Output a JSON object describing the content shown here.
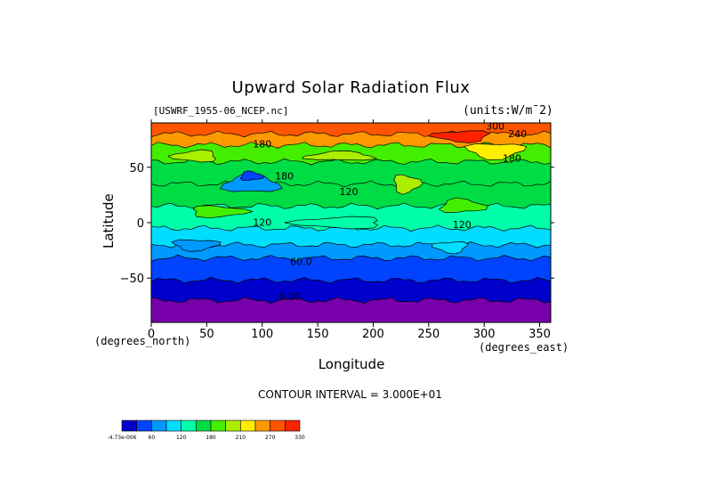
{
  "chart_data": {
    "type": "heatmap",
    "title": "Upward Solar Radiation Flux",
    "dataset_label": "[USWRF_1955-06_NCEP.nc]",
    "units_label": "(units:W/m^2)",
    "xlabel": "Longitude",
    "x_units": "(degrees_east)",
    "ylabel": "Latitude",
    "y_units": "(degrees_north)",
    "xlim": [
      0,
      360
    ],
    "ylim": [
      -90,
      90
    ],
    "x_ticks": [
      0,
      50,
      100,
      150,
      200,
      250,
      300,
      350
    ],
    "y_ticks": [
      -50,
      0,
      50
    ],
    "contour_interval_text": "CONTOUR INTERVAL = 3.000E+01",
    "contour_labels": [
      {
        "text": "300",
        "lon": 310,
        "lat": 84
      },
      {
        "text": "240",
        "lon": 330,
        "lat": 77
      },
      {
        "text": "180",
        "lon": 100,
        "lat": 68
      },
      {
        "text": "180",
        "lon": 325,
        "lat": 55
      },
      {
        "text": "180",
        "lon": 120,
        "lat": 39
      },
      {
        "text": "120",
        "lon": 178,
        "lat": 25
      },
      {
        "text": "120",
        "lon": 100,
        "lat": -3
      },
      {
        "text": "120",
        "lon": 280,
        "lat": -5
      },
      {
        "text": "60.0",
        "lon": 135,
        "lat": -38
      },
      {
        "text": "0.00",
        "lon": 125,
        "lat": -70
      }
    ],
    "colorbar": {
      "min_label": "-4.73e-006",
      "tick_labels": [
        "-4.73e-006",
        "60",
        "120",
        "180",
        "210",
        "270",
        "330"
      ],
      "colors": [
        "#0000cc",
        "#0044ff",
        "#0099ff",
        "#00ddff",
        "#00ffaa",
        "#00dd44",
        "#44ee00",
        "#aaee00",
        "#ffee00",
        "#ff9900",
        "#ff5500",
        "#ff2200"
      ]
    },
    "latitude_bands": [
      {
        "lat_top": 90,
        "lat_bottom": 80,
        "value": 280,
        "color": "#ff5500"
      },
      {
        "lat_top": 80,
        "lat_bottom": 70,
        "value": 240,
        "color": "#ff9900"
      },
      {
        "lat_top": 70,
        "lat_bottom": 55,
        "value": 200,
        "color": "#44ee00"
      },
      {
        "lat_top": 55,
        "lat_bottom": 35,
        "value": 180,
        "color": "#00dd44"
      },
      {
        "lat_top": 35,
        "lat_bottom": 15,
        "value": 150,
        "color": "#00dd44"
      },
      {
        "lat_top": 15,
        "lat_bottom": -5,
        "value": 130,
        "color": "#00ffaa"
      },
      {
        "lat_top": -5,
        "lat_bottom": -20,
        "value": 100,
        "color": "#00ddff"
      },
      {
        "lat_top": -20,
        "lat_bottom": -32,
        "value": 75,
        "color": "#0099ff"
      },
      {
        "lat_top": -32,
        "lat_bottom": -52,
        "value": 45,
        "color": "#0044ff"
      },
      {
        "lat_top": -52,
        "lat_bottom": -70,
        "value": 15,
        "color": "#0000cc"
      },
      {
        "lat_top": -70,
        "lat_bottom": -90,
        "value": 0,
        "color": "#7700aa"
      }
    ],
    "patches": [
      {
        "lon": 90,
        "lat": 35,
        "rlon": 25,
        "rlat": 8,
        "color": "#0099ff"
      },
      {
        "lon": 90,
        "lat": 42,
        "rlon": 10,
        "rlat": 4,
        "color": "#0044ff"
      },
      {
        "lon": 230,
        "lat": 35,
        "rlon": 12,
        "rlat": 8,
        "color": "#aaee00"
      },
      {
        "lon": 310,
        "lat": 65,
        "rlon": 25,
        "rlat": 7,
        "color": "#ffee00"
      },
      {
        "lon": 280,
        "lat": 78,
        "rlon": 25,
        "rlat": 5,
        "color": "#ff2200"
      },
      {
        "lon": 40,
        "lat": 60,
        "rlon": 20,
        "rlat": 5,
        "color": "#aaee00"
      },
      {
        "lon": 170,
        "lat": 60,
        "rlon": 30,
        "rlat": 4,
        "color": "#aaee00"
      },
      {
        "lon": 280,
        "lat": 15,
        "rlon": 20,
        "rlat": 6,
        "color": "#44ee00"
      },
      {
        "lon": 60,
        "lat": 10,
        "rlon": 25,
        "rlat": 5,
        "color": "#44ee00"
      },
      {
        "lon": 40,
        "lat": -20,
        "rlon": 20,
        "rlat": 5,
        "color": "#0099ff"
      },
      {
        "lon": 270,
        "lat": -22,
        "rlon": 15,
        "rlat": 5,
        "color": "#00ddff"
      },
      {
        "lon": 170,
        "lat": 0,
        "rlon": 40,
        "rlat": 5,
        "color": "#00ffaa"
      }
    ]
  }
}
